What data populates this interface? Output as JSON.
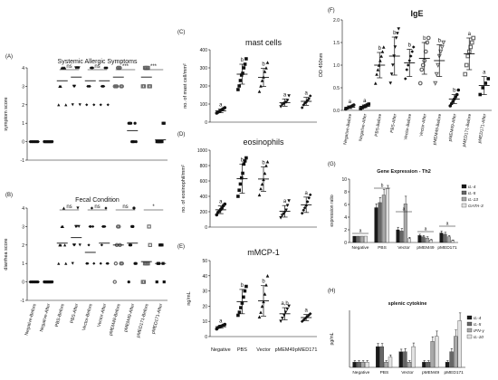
{
  "panels": {
    "A": {
      "letter": "(A)",
      "title": "Systemic Allergic Symptoms",
      "ylabel": "symptom score",
      "yticks": [
        "4",
        "3",
        "2",
        "1",
        "0",
        "-1"
      ],
      "sig": [
        "ns",
        "ns",
        "***",
        "***"
      ]
    },
    "B": {
      "letter": "(B)",
      "title": "Fecal Condition",
      "ylabel": "diarrhea score",
      "yticks": [
        "4",
        "3",
        "2",
        "1",
        "0",
        "-1"
      ],
      "sig": [
        "ns",
        "ns",
        "ns",
        "*"
      ],
      "xticks": [
        "Negative-Before",
        "Negative-After",
        "PBS-Before",
        "PBS-After",
        "Vector-Before",
        "Vector-After",
        "pMEM49-Before",
        "pMEM49-After",
        "pMED171-Before",
        "pMED171-After"
      ]
    },
    "C": {
      "letter": "(C)",
      "title": "mast cells",
      "ylabel": "no. of mast cell/mm²",
      "yticks": [
        "400",
        "300",
        "200",
        "100",
        "0"
      ],
      "letters": [
        "a",
        "b",
        "b",
        "a",
        "a"
      ]
    },
    "D": {
      "letter": "(D)",
      "title": "eosinophils",
      "ylabel": "no. of eosinophil/mm²",
      "yticks": [
        "1000",
        "800",
        "600",
        "400",
        "200",
        "0"
      ],
      "letters": [
        "a",
        "b",
        "b",
        "a",
        "a"
      ]
    },
    "E": {
      "letter": "(E)",
      "title": "mMCP-1",
      "ylabel": "ng/mL",
      "yticks": [
        "50",
        "40",
        "30",
        "20",
        "10",
        "0"
      ],
      "letters": [
        "a",
        "b",
        "b",
        "a,b",
        "a"
      ],
      "xticks": [
        "Negative",
        "PBS",
        "Vector",
        "pMEM49",
        "pMED171"
      ]
    },
    "F": {
      "letter": "(F)",
      "title": "IgE",
      "ylabel": "OD 450nm",
      "yticks": [
        "2.0",
        "1.5",
        "1.0",
        "0.5",
        "0.0"
      ],
      "letters": [
        "a",
        "a",
        "b",
        "b",
        "b",
        "b",
        "b",
        "b",
        "a",
        "a"
      ],
      "xticks": [
        "Negative-Before",
        "Negative-After",
        "PBS-Before",
        "PBS-After",
        "Vector-Before",
        "Vector-After",
        "pMEM49-Before",
        "pMEM49-After",
        "pMED171-Before",
        "pMED171-After"
      ]
    },
    "G": {
      "letter": "(G)",
      "title": "Gene Expression - Th2",
      "ylabel": "expression ratio",
      "yticks": [
        "10",
        "8",
        "6",
        "4",
        "2",
        "0"
      ],
      "xticks": [
        "Negative",
        "PBS",
        "Vector",
        "pMEM49",
        "pMED171"
      ],
      "legend": [
        "IL-4",
        "IL-5",
        "IL-13",
        "GATA-3"
      ],
      "sig_a": "a",
      "sig_b": "b"
    },
    "H": {
      "letter": "(H)",
      "title": "splenic cytokine",
      "ylabel": "pg/mL",
      "xticks": [
        "Negative",
        "PBS",
        "Vector",
        "pMEM49",
        "pMED171"
      ],
      "legend": [
        "IL-4",
        "IL-5",
        "IFN-γ",
        "IL-10"
      ]
    }
  },
  "colors": {
    "ink": "#111111",
    "dark": "#1a1a1a",
    "mid": "#666666",
    "light": "#a8a8a8",
    "pale": "#e2e2e2"
  },
  "chart_data": [
    {
      "type": "scatter",
      "panel": "A",
      "title": "Systemic Allergic Symptoms",
      "ylabel": "symptom score",
      "ylim": [
        -1,
        4
      ],
      "categories": [
        "Negative-Before",
        "Negative-After",
        "PBS-Before",
        "PBS-After",
        "Vector-Before",
        "Vector-After",
        "pMEM49-Before",
        "pMEM49-After",
        "pMED171-Before",
        "pMED171-After"
      ],
      "series": [
        {
          "points": [
            [
              0,
              0,
              0,
              0,
              0,
              0
            ],
            [
              0,
              0,
              0,
              0,
              0,
              0
            ],
            [
              2,
              3,
              3,
              4,
              4,
              4,
              4,
              2
            ],
            [
              2,
              3,
              3,
              4,
              4,
              4,
              4,
              2
            ],
            [
              2,
              3,
              3,
              3,
              4,
              4,
              4,
              2
            ],
            [
              2,
              3,
              3,
              3,
              4,
              4,
              4,
              2
            ],
            [
              3,
              3,
              3,
              4,
              4,
              4,
              3,
              3
            ],
            [
              1,
              1,
              1,
              0,
              0,
              0,
              1,
              0
            ],
            [
              3,
              3,
              4,
              4,
              4,
              4,
              3,
              3
            ],
            [
              0,
              0,
              0,
              0,
              0,
              0,
              1,
              1
            ]
          ],
          "means": [
            0,
            0,
            3.3,
            3.5,
            3.3,
            3.3,
            3.5,
            0.6,
            3.5,
            0.1
          ]
        }
      ]
    },
    {
      "type": "scatter",
      "panel": "B",
      "title": "Fecal Condition",
      "ylabel": "diarrhea score",
      "ylim": [
        -1,
        4
      ],
      "categories": [
        "Negative-Before",
        "Negative-After",
        "PBS-Before",
        "PBS-After",
        "Vector-Before",
        "Vector-After",
        "pMEM49-Before",
        "pMEM49-After",
        "pMED171-Before",
        "pMED171-After"
      ],
      "series": [
        {
          "points": [
            [
              0,
              0,
              0,
              0,
              0,
              0
            ],
            [
              0,
              0,
              0,
              0,
              0,
              0
            ],
            [
              1,
              2,
              2,
              3,
              3,
              4,
              2,
              1
            ],
            [
              1,
              2,
              2,
              3,
              3,
              4,
              3,
              2
            ],
            [
              1,
              1,
              2,
              3,
              3,
              4,
              3,
              1
            ],
            [
              1,
              2,
              3,
              3,
              3,
              4,
              1,
              1
            ],
            [
              0,
              1,
              2,
              3,
              3,
              2,
              1,
              1
            ],
            [
              0,
              2,
              2,
              3,
              3,
              4,
              1,
              1
            ],
            [
              0,
              0,
              1,
              1,
              1,
              1,
              3,
              2
            ],
            [
              0,
              1,
              1,
              2,
              2,
              2,
              1,
              0
            ]
          ],
          "means": [
            0,
            0,
            2.1,
            2.4,
            1.6,
            2.1,
            2,
            2.1,
            1.1,
            1.0
          ]
        }
      ]
    },
    {
      "type": "scatter",
      "panel": "C",
      "title": "mast cells",
      "ylabel": "no. of mast cell/mm²",
      "ylim": [
        0,
        400
      ],
      "categories": [
        "Negative",
        "PBS",
        "Vector",
        "pMEM49",
        "pMED171"
      ],
      "series": [
        {
          "points": [
            [
              50,
              55,
              60,
              65,
              70,
              75,
              80
            ],
            [
              180,
              200,
              230,
              260,
              270,
              300,
              320,
              350
            ],
            [
              170,
              200,
              230,
              250,
              280,
              300,
              330
            ],
            [
              85,
              95,
              100,
              105,
              110,
              120,
              145
            ],
            [
              80,
              95,
              105,
              110,
              120,
              130,
              145
            ]
          ],
          "means": [
            62,
            265,
            247,
            108,
            115
          ],
          "sd": [
            10,
            55,
            50,
            20,
            22
          ]
        }
      ]
    },
    {
      "type": "scatter",
      "panel": "D",
      "title": "eosinophils",
      "ylabel": "no. of eosinophil/mm²",
      "ylim": [
        0,
        1000
      ],
      "categories": [
        "Negative",
        "PBS",
        "Vector",
        "pMEM49",
        "pMED171"
      ],
      "series": [
        {
          "points": [
            [
              160,
              190,
              210,
              230,
              250,
              280,
              300
            ],
            [
              400,
              480,
              560,
              640,
              700,
              820,
              860,
              900
            ],
            [
              420,
              500,
              560,
              620,
              700,
              800,
              850
            ],
            [
              120,
              150,
              170,
              190,
              220,
              280,
              340
            ],
            [
              180,
              220,
              250,
              280,
              330,
              380,
              420
            ]
          ],
          "means": [
            225,
            630,
            625,
            205,
            290
          ],
          "sd": [
            50,
            190,
            160,
            75,
            100
          ]
        }
      ]
    },
    {
      "type": "scatter",
      "panel": "E",
      "title": "mMCP-1",
      "ylabel": "ng/mL",
      "ylim": [
        0,
        50
      ],
      "categories": [
        "Negative",
        "PBS",
        "Vector",
        "pMEM49",
        "pMED171"
      ],
      "series": [
        {
          "points": [
            [
              5,
              6,
              6.5,
              7,
              7.5,
              8
            ],
            [
              14,
              16,
              19,
              22,
              26,
              30,
              33
            ],
            [
              13,
              16,
              20,
              23,
              28,
              34,
              40
            ],
            [
              10,
              12,
              14,
              16,
              18,
              20
            ],
            [
              10,
              11,
              12,
              13,
              14,
              15
            ]
          ],
          "means": [
            6.5,
            23,
            23.5,
            15,
            12.5
          ],
          "sd": [
            1,
            8,
            10,
            4,
            2
          ]
        }
      ]
    },
    {
      "type": "scatter",
      "panel": "F",
      "title": "IgE",
      "ylabel": "OD 450nm",
      "ylim": [
        0,
        2
      ],
      "categories": [
        "Negative-Before",
        "Negative-After",
        "PBS-Before",
        "PBS-After",
        "Vector-Before",
        "Vector-After",
        "pMEM49-Before",
        "pMEM49-After",
        "pMED171-Before",
        "pMED171-After"
      ],
      "series": [
        {
          "points": [
            [
              0.03,
              0.05,
              0.07,
              0.08,
              0.1,
              0.12
            ],
            [
              0.04,
              0.06,
              0.08,
              0.1,
              0.12,
              0.14
            ],
            [
              0.6,
              0.8,
              0.9,
              1.0,
              1.1,
              1.2,
              1.3,
              1.4
            ],
            [
              0.6,
              0.8,
              1.0,
              1.2,
              1.4,
              1.6,
              1.7,
              1.8
            ],
            [
              0.7,
              0.9,
              1.0,
              1.1,
              1.2,
              1.3,
              1.4
            ],
            [
              0.6,
              0.9,
              1.0,
              1.1,
              1.3,
              1.5,
              1.6
            ],
            [
              0.6,
              0.8,
              1.0,
              1.2,
              1.3,
              1.4,
              1.5
            ],
            [
              0.1,
              0.15,
              0.2,
              0.25,
              0.3,
              0.35,
              0.45
            ],
            [
              0.8,
              1.0,
              1.2,
              1.3,
              1.4,
              1.5,
              1.6
            ],
            [
              0.35,
              0.5,
              0.6,
              0.7
            ]
          ],
          "means": [
            0.07,
            0.09,
            1.0,
            1.2,
            1.05,
            1.15,
            1.1,
            0.25,
            1.25,
            0.55
          ],
          "sd": [
            0.03,
            0.03,
            0.28,
            0.42,
            0.3,
            0.35,
            0.35,
            0.1,
            0.35,
            0.2
          ]
        }
      ]
    },
    {
      "type": "bar",
      "panel": "G",
      "title": "Gene Expression - Th2",
      "ylabel": "expression ratio",
      "ylim": [
        0,
        10
      ],
      "categories": [
        "Negative",
        "PBS",
        "Vector",
        "pMEM49",
        "pMED171"
      ],
      "series": [
        {
          "name": "IL-4",
          "values": [
            1,
            5.5,
            2.0,
            1.1,
            1.5
          ],
          "err": [
            0,
            0.6,
            0.4,
            0.2,
            0.3
          ]
        },
        {
          "name": "IL-5",
          "values": [
            1,
            6.3,
            1.8,
            0.9,
            1.3
          ],
          "err": [
            0,
            0.8,
            0.4,
            0.2,
            0.3
          ]
        },
        {
          "name": "IL-13",
          "values": [
            1,
            7.5,
            6.1,
            0.7,
            0.9
          ],
          "err": [
            0,
            0.9,
            1.2,
            0.2,
            0.2
          ]
        },
        {
          "name": "GATA-3",
          "values": [
            1,
            8.5,
            0.6,
            0.4,
            0.3
          ],
          "err": [
            0,
            0.5,
            0.2,
            0.1,
            0.1
          ]
        }
      ]
    },
    {
      "type": "bar",
      "panel": "H",
      "title": "splenic cytokine",
      "ylabel": "pg/mL",
      "categories": [
        "Negative",
        "PBS",
        "Vector",
        "pMEM49",
        "pMED171"
      ],
      "series": [
        {
          "name": "IL-4",
          "values": [
            1,
            4,
            3,
            1,
            1
          ],
          "err": [
            0.3,
            0.6,
            0.5,
            0.3,
            0.3
          ]
        },
        {
          "name": "IL-5",
          "values": [
            1,
            4,
            3,
            1,
            3
          ],
          "err": [
            0.3,
            0.6,
            0.6,
            0.3,
            0.6
          ]
        },
        {
          "name": "IFN-γ",
          "values": [
            1,
            1,
            1,
            5,
            6
          ],
          "err": [
            0.3,
            0.3,
            0.3,
            0.9,
            1.2
          ]
        },
        {
          "name": "IL-10",
          "values": [
            1,
            2,
            4,
            6,
            9
          ],
          "err": [
            0.3,
            0.4,
            0.7,
            1,
            1.5
          ]
        }
      ]
    }
  ]
}
